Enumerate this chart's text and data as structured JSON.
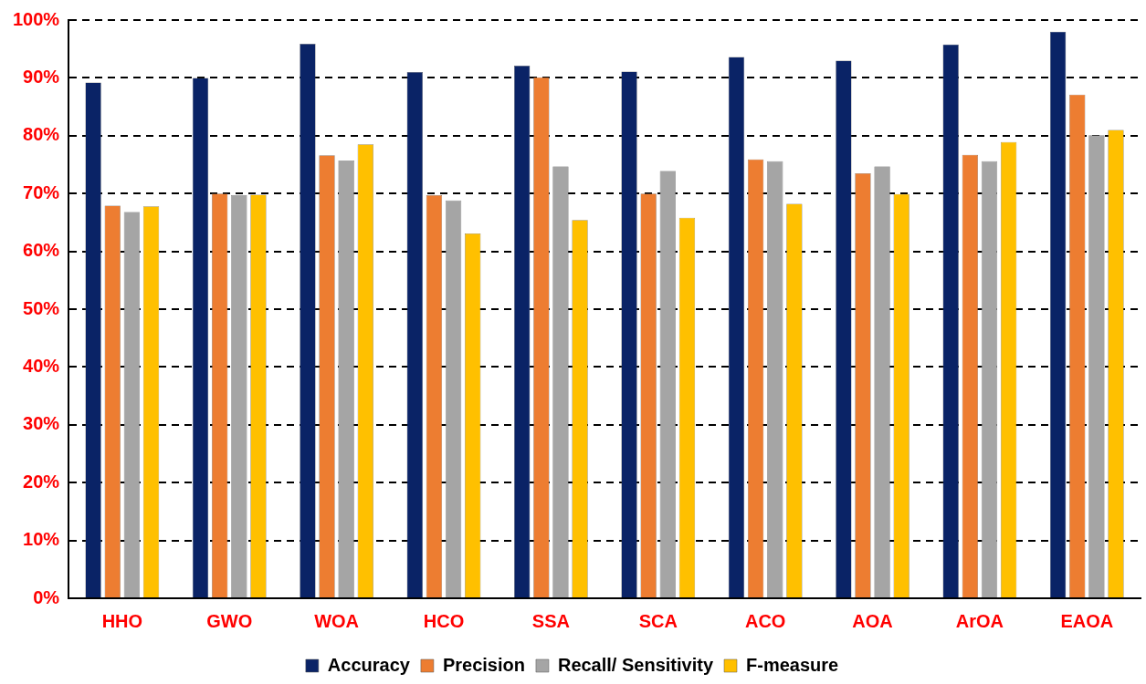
{
  "chart_data": {
    "type": "bar",
    "categories": [
      "HHO",
      "GWO",
      "WOA",
      "HCO",
      "SSA",
      "SCA",
      "ACO",
      "AOA",
      "ArOA",
      "EAOA"
    ],
    "series": [
      {
        "name": "Accuracy",
        "color": "#0a2366",
        "values": [
          89.2,
          90,
          95.9,
          91,
          92.1,
          91.1,
          93.6,
          93,
          95.8,
          98
        ]
      },
      {
        "name": "Precision",
        "color": "#ed7d31",
        "values": [
          67.9,
          70,
          76.6,
          69.7,
          90.1,
          70,
          75.9,
          73.5,
          76.7,
          87.1
        ]
      },
      {
        "name": "Recall/ Sensitivity",
        "color": "#a5a5a5",
        "values": [
          66.8,
          69.7,
          75.7,
          68.8,
          74.7,
          73.9,
          75.6,
          74.7,
          75.6,
          80.1
        ]
      },
      {
        "name": "F-measure",
        "color": "#ffc000",
        "values": [
          67.8,
          69.8,
          78.5,
          63.1,
          65.4,
          65.8,
          68.2,
          69.9,
          78.9,
          81
        ]
      }
    ],
    "ylim": [
      0,
      100
    ],
    "yticks": [
      {
        "value": 0,
        "label": "0%"
      },
      {
        "value": 10,
        "label": "10%"
      },
      {
        "value": 20,
        "label": "20%"
      },
      {
        "value": 30,
        "label": "30%"
      },
      {
        "value": 40,
        "label": "40%"
      },
      {
        "value": 50,
        "label": "50%"
      },
      {
        "value": 60,
        "label": "60%"
      },
      {
        "value": 70,
        "label": "70%"
      },
      {
        "value": 80,
        "label": "80%"
      },
      {
        "value": 90,
        "label": "90%"
      },
      {
        "value": 100,
        "label": "100%"
      }
    ],
    "grid": "y",
    "legend": "bottom"
  }
}
